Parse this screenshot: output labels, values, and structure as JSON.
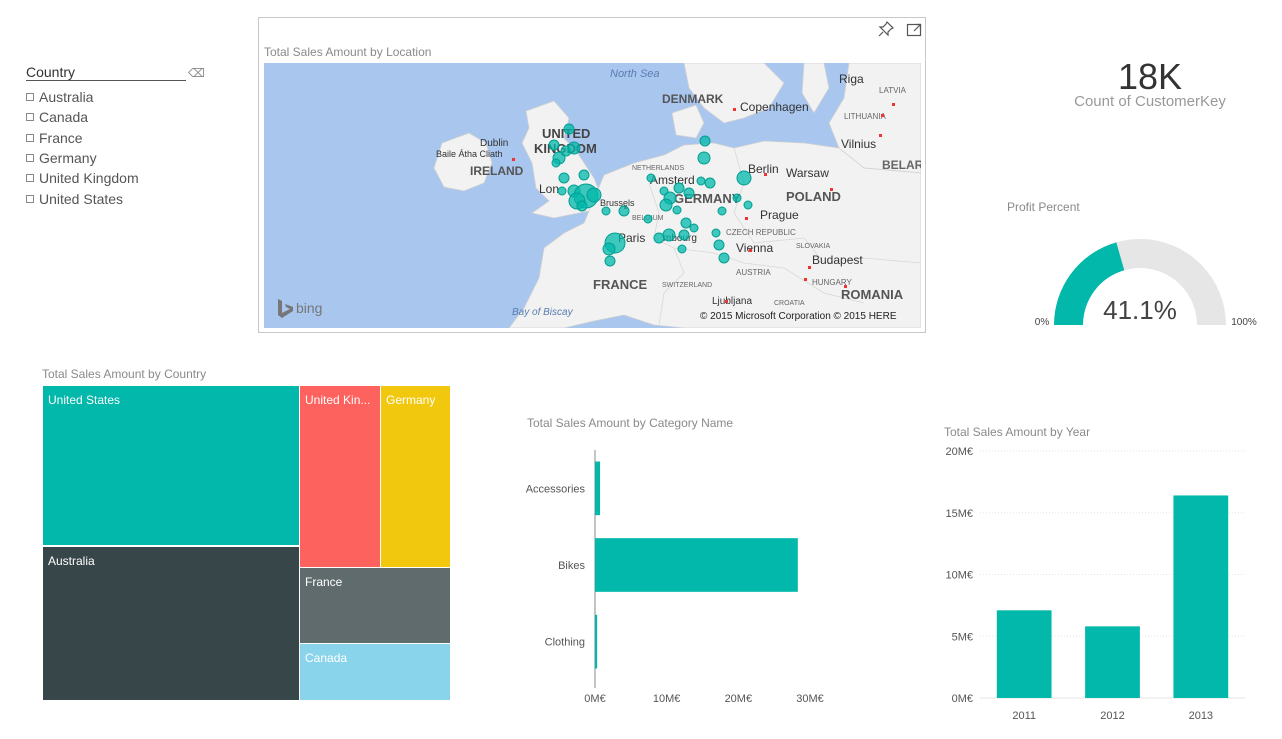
{
  "slicer": {
    "title": "Country",
    "items": [
      "Australia",
      "Canada",
      "France",
      "Germany",
      "United Kingdom",
      "United States"
    ]
  },
  "map": {
    "title": "Total Sales Amount by Location",
    "labels": {
      "north_sea": "North Sea",
      "denmark": "DENMARK",
      "copenhagen": "Copenhagen",
      "riga": "Riga",
      "latvia": "LATVIA",
      "lithuania": "LITHUANIA",
      "vilnius": "Vilnius",
      "belarus": "BELAR",
      "uk1": "UNITED",
      "uk2": "KINGDOM",
      "dublin": "Dublin",
      "baile": "Baile Átha Cliath",
      "ireland": "IRELAND",
      "netherlands": "NETHERLANDS",
      "amsterdam": "Amsterd",
      "berlin": "Berlin",
      "warsaw": "Warsaw",
      "poland": "POLAND",
      "london": "Lon",
      "brussels": "Brussels",
      "belgium": "BELGIUM",
      "germany": "GERMANY",
      "prague": "Prague",
      "czech": "CZECH REPUBLIC",
      "paris": "Paris",
      "luxembourg": "mbourg",
      "vienna": "Vienna",
      "slovakia": "SLOVAKIA",
      "austria": "AUSTRIA",
      "budapest": "Budapest",
      "hungary": "HUNGARY",
      "france": "FRANCE",
      "switzerland": "SWITZERLAND",
      "ljubljana": "Ljubljana",
      "croatia": "CROATIA",
      "romania": "ROMANIA",
      "bay": "Bay of Biscay",
      "bing": "bing",
      "copyright": "© 2015 Microsoft Corporation    © 2015 HERE"
    }
  },
  "card": {
    "value": "18K",
    "label": "Count of CustomerKey"
  },
  "gauge": {
    "title": "Profit Percent",
    "value": 41.1,
    "value_label": "41.1%",
    "min_label": "0%",
    "max_label": "100%",
    "min": 0,
    "max": 100
  },
  "treemap": {
    "title": "Total Sales Amount by Country",
    "items": [
      {
        "name": "United States",
        "label": "United States",
        "color": "#01b8aa"
      },
      {
        "name": "Australia",
        "label": "Australia",
        "color": "#374649"
      },
      {
        "name": "United Kingdom",
        "label": "United Kin...",
        "color": "#fd625e"
      },
      {
        "name": "Germany",
        "label": "Germany",
        "color": "#f2c80f"
      },
      {
        "name": "France",
        "label": "France",
        "color": "#5f6b6d"
      },
      {
        "name": "Canada",
        "label": "Canada",
        "color": "#8ad4eb"
      }
    ]
  },
  "chart_data": [
    {
      "type": "bar",
      "orientation": "horizontal",
      "title": "Total Sales Amount by Category Name",
      "categories": [
        "Accessories",
        "Bikes",
        "Clothing"
      ],
      "values": [
        0.7,
        28.3,
        0.3
      ],
      "unit": "M€",
      "xticks": [
        "0M€",
        "10M€",
        "20M€",
        "30M€"
      ],
      "xlim": [
        0,
        30
      ],
      "color": "#01b8aa"
    },
    {
      "type": "bar",
      "orientation": "vertical",
      "title": "Total Sales Amount by Year",
      "categories": [
        "2011",
        "2012",
        "2013"
      ],
      "values": [
        7.1,
        5.8,
        16.4
      ],
      "unit": "M€",
      "yticks": [
        "0M€",
        "5M€",
        "10M€",
        "15M€",
        "20M€"
      ],
      "ylim": [
        0,
        20
      ],
      "grid": true,
      "color": "#01b8aa"
    }
  ]
}
